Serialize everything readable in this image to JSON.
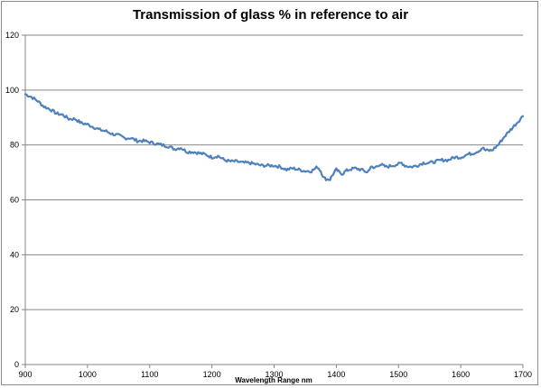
{
  "chart_data": {
    "type": "line",
    "title": "Transmission of glass % in reference to air",
    "xlabel": "Wavelength Range nm",
    "ylabel": "",
    "xlim": [
      900,
      1700
    ],
    "ylim": [
      0,
      120
    ],
    "x_ticks": [
      "900",
      "1000",
      "1100",
      "1200",
      "1300",
      "1400",
      "1500",
      "1600",
      "1700"
    ],
    "y_ticks": [
      "0",
      "20",
      "40",
      "60",
      "80",
      "100",
      "120"
    ],
    "grid": "horizontal",
    "legend": "none",
    "series": [
      {
        "color": "#4f81bd",
        "x": [
          900,
          910,
          920,
          930,
          940,
          950,
          960,
          970,
          980,
          990,
          1000,
          1010,
          1020,
          1030,
          1040,
          1050,
          1060,
          1070,
          1080,
          1090,
          1100,
          1110,
          1120,
          1130,
          1140,
          1150,
          1160,
          1170,
          1180,
          1190,
          1200,
          1210,
          1220,
          1230,
          1240,
          1250,
          1260,
          1270,
          1280,
          1290,
          1300,
          1310,
          1320,
          1330,
          1340,
          1350,
          1360,
          1370,
          1375,
          1380,
          1385,
          1390,
          1395,
          1400,
          1405,
          1410,
          1415,
          1420,
          1430,
          1440,
          1450,
          1455,
          1460,
          1470,
          1475,
          1480,
          1490,
          1500,
          1505,
          1510,
          1520,
          1530,
          1540,
          1550,
          1560,
          1570,
          1580,
          1590,
          1600,
          1610,
          1620,
          1630,
          1635,
          1640,
          1650,
          1660,
          1670,
          1680,
          1690,
          1700
        ],
        "y": [
          98.5,
          97.5,
          96,
          94,
          93,
          91.5,
          91,
          89.5,
          89.5,
          88,
          87.5,
          86.5,
          85.5,
          85,
          84,
          83.5,
          82.5,
          82.5,
          81.5,
          81.5,
          81,
          80.5,
          80,
          79.5,
          78.5,
          79,
          77.5,
          77.5,
          77,
          76.5,
          75.5,
          76,
          74.5,
          74,
          74,
          73.5,
          73.5,
          73,
          72.5,
          72.5,
          72.5,
          72,
          71,
          71.5,
          71,
          70.5,
          70.5,
          72,
          70.5,
          68,
          67.5,
          67.5,
          69.5,
          71,
          70,
          69.5,
          70.5,
          71,
          71.5,
          71,
          70,
          72,
          71.5,
          73,
          72.5,
          72,
          72.5,
          73,
          73.5,
          72.5,
          72,
          72.5,
          73.5,
          73.5,
          74,
          74.5,
          74.5,
          75.5,
          75.5,
          76.5,
          77,
          78,
          79,
          78,
          78,
          80,
          83,
          85.5,
          88,
          90.5
        ]
      }
    ]
  }
}
